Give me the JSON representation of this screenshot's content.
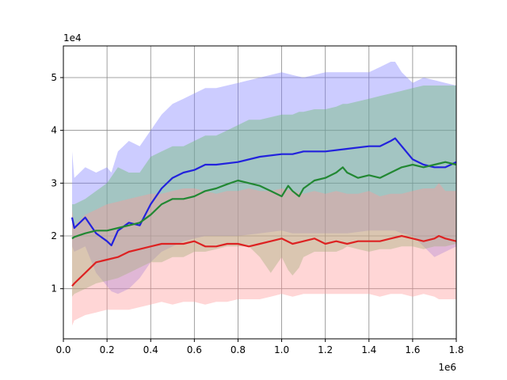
{
  "chart_data": {
    "type": "line",
    "title": "",
    "xlabel": "",
    "ylabel": "",
    "x_offset_label": "1e6",
    "y_offset_label": "1e4",
    "xlim": [
      0.0,
      1.8
    ],
    "ylim": [
      0.05,
      5.6
    ],
    "x_ticks": [
      0.0,
      0.2,
      0.4,
      0.6,
      0.8,
      1.0,
      1.2,
      1.4,
      1.6,
      1.8
    ],
    "x_tick_labels": [
      "0.0",
      "0.2",
      "0.4",
      "0.6",
      "0.8",
      "1.0",
      "1.2",
      "1.4",
      "1.6",
      "1.8"
    ],
    "y_ticks": [
      1,
      2,
      3,
      4,
      5
    ],
    "y_tick_labels": [
      "1",
      "2",
      "3",
      "4",
      "5"
    ],
    "grid": true,
    "legend": "none",
    "series": [
      {
        "color": "#2222dd",
        "band_color": "#8080ff",
        "x": [
          0.04,
          0.05,
          0.1,
          0.15,
          0.2,
          0.22,
          0.25,
          0.3,
          0.35,
          0.4,
          0.45,
          0.5,
          0.55,
          0.6,
          0.65,
          0.7,
          0.8,
          0.9,
          1.0,
          1.05,
          1.1,
          1.2,
          1.3,
          1.4,
          1.45,
          1.5,
          1.52,
          1.55,
          1.6,
          1.65,
          1.7,
          1.75,
          1.8
        ],
        "y": [
          2.35,
          2.15,
          2.35,
          2.05,
          1.9,
          1.82,
          2.1,
          2.25,
          2.2,
          2.6,
          2.9,
          3.1,
          3.2,
          3.25,
          3.35,
          3.35,
          3.4,
          3.5,
          3.55,
          3.55,
          3.6,
          3.6,
          3.65,
          3.7,
          3.7,
          3.8,
          3.85,
          3.7,
          3.45,
          3.35,
          3.3,
          3.3,
          3.4
        ],
        "upper": [
          3.6,
          3.1,
          3.3,
          3.2,
          3.3,
          3.2,
          3.6,
          3.8,
          3.7,
          4.0,
          4.3,
          4.5,
          4.6,
          4.7,
          4.8,
          4.8,
          4.9,
          5.0,
          5.1,
          5.05,
          5.0,
          5.1,
          5.1,
          5.1,
          5.2,
          5.3,
          5.3,
          5.1,
          4.9,
          5.0,
          4.95,
          4.9,
          4.85
        ],
        "lower": [
          1.8,
          1.7,
          1.8,
          1.3,
          1.05,
          0.95,
          0.9,
          1.0,
          1.2,
          1.5,
          1.7,
          1.8,
          1.9,
          1.95,
          2.0,
          2.0,
          2.0,
          2.05,
          2.1,
          2.05,
          2.05,
          2.05,
          2.05,
          2.1,
          2.1,
          2.1,
          2.1,
          2.05,
          2.0,
          1.8,
          1.6,
          1.7,
          1.8
        ]
      },
      {
        "color": "#228833",
        "band_color": "#66bb66",
        "x": [
          0.04,
          0.05,
          0.1,
          0.15,
          0.2,
          0.25,
          0.3,
          0.35,
          0.4,
          0.45,
          0.5,
          0.55,
          0.6,
          0.65,
          0.7,
          0.75,
          0.8,
          0.85,
          0.9,
          0.95,
          1.0,
          1.03,
          1.05,
          1.08,
          1.1,
          1.15,
          1.2,
          1.25,
          1.28,
          1.3,
          1.35,
          1.4,
          1.45,
          1.5,
          1.55,
          1.6,
          1.65,
          1.7,
          1.75,
          1.8
        ],
        "y": [
          1.95,
          1.98,
          2.05,
          2.1,
          2.1,
          2.15,
          2.2,
          2.25,
          2.4,
          2.6,
          2.7,
          2.7,
          2.75,
          2.85,
          2.9,
          2.98,
          3.05,
          3.0,
          2.95,
          2.85,
          2.75,
          2.95,
          2.85,
          2.75,
          2.9,
          3.05,
          3.1,
          3.2,
          3.3,
          3.2,
          3.1,
          3.15,
          3.1,
          3.2,
          3.3,
          3.35,
          3.3,
          3.35,
          3.4,
          3.35
        ],
        "upper": [
          2.6,
          2.6,
          2.7,
          2.85,
          3.0,
          3.3,
          3.2,
          3.2,
          3.5,
          3.6,
          3.7,
          3.7,
          3.8,
          3.9,
          3.9,
          4.0,
          4.1,
          4.2,
          4.2,
          4.25,
          4.3,
          4.3,
          4.3,
          4.35,
          4.35,
          4.4,
          4.4,
          4.45,
          4.5,
          4.5,
          4.55,
          4.6,
          4.65,
          4.7,
          4.75,
          4.8,
          4.85,
          4.85,
          4.85,
          4.85
        ],
        "lower": [
          0.85,
          0.9,
          1.0,
          1.1,
          1.15,
          1.2,
          1.3,
          1.4,
          1.5,
          1.5,
          1.6,
          1.6,
          1.7,
          1.7,
          1.75,
          1.8,
          1.8,
          1.8,
          1.6,
          1.3,
          1.6,
          1.35,
          1.25,
          1.4,
          1.6,
          1.7,
          1.7,
          1.7,
          1.75,
          1.8,
          1.75,
          1.7,
          1.75,
          1.75,
          1.8,
          1.8,
          1.75,
          1.8,
          1.8,
          1.85
        ]
      },
      {
        "color": "#dd2222",
        "band_color": "#ff9999",
        "x": [
          0.04,
          0.05,
          0.1,
          0.15,
          0.2,
          0.25,
          0.3,
          0.35,
          0.4,
          0.45,
          0.5,
          0.55,
          0.6,
          0.65,
          0.7,
          0.75,
          0.8,
          0.85,
          0.9,
          0.95,
          1.0,
          1.05,
          1.1,
          1.15,
          1.2,
          1.25,
          1.3,
          1.35,
          1.4,
          1.45,
          1.5,
          1.55,
          1.6,
          1.65,
          1.7,
          1.72,
          1.75,
          1.8
        ],
        "y": [
          1.05,
          1.1,
          1.3,
          1.5,
          1.55,
          1.6,
          1.7,
          1.75,
          1.8,
          1.85,
          1.85,
          1.85,
          1.9,
          1.8,
          1.8,
          1.85,
          1.85,
          1.8,
          1.85,
          1.9,
          1.95,
          1.85,
          1.9,
          1.95,
          1.85,
          1.9,
          1.85,
          1.9,
          1.9,
          1.9,
          1.95,
          2.0,
          1.95,
          1.9,
          1.95,
          2.0,
          1.95,
          1.9
        ],
        "upper": [
          2.5,
          2.2,
          2.4,
          2.5,
          2.6,
          2.65,
          2.7,
          2.75,
          2.8,
          2.8,
          2.85,
          2.9,
          2.9,
          2.85,
          2.8,
          2.85,
          2.85,
          2.9,
          2.85,
          2.85,
          2.9,
          2.85,
          2.8,
          2.85,
          2.8,
          2.85,
          2.8,
          2.8,
          2.85,
          2.75,
          2.8,
          2.8,
          2.85,
          2.9,
          2.9,
          3.0,
          2.85,
          2.85
        ],
        "lower": [
          0.3,
          0.4,
          0.5,
          0.55,
          0.6,
          0.6,
          0.6,
          0.65,
          0.7,
          0.75,
          0.7,
          0.75,
          0.75,
          0.7,
          0.75,
          0.75,
          0.8,
          0.8,
          0.8,
          0.85,
          0.9,
          0.85,
          0.9,
          0.9,
          0.9,
          0.9,
          0.9,
          0.9,
          0.9,
          0.85,
          0.9,
          0.9,
          0.85,
          0.9,
          0.85,
          0.8,
          0.8,
          0.8
        ]
      }
    ]
  }
}
